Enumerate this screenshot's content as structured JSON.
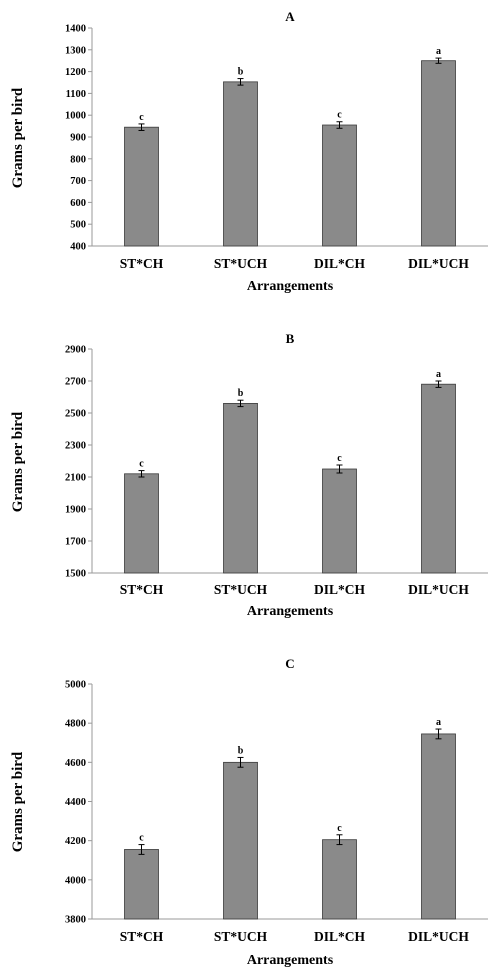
{
  "colors": {
    "bar_fill": "#8a8a8a",
    "bar_stroke": "#3a3a3a",
    "axis": "#9a9a9a",
    "background": "#ffffff"
  },
  "chart_data": [
    {
      "type": "bar",
      "title": "A",
      "xlabel": "Arrangements",
      "ylabel": "Grams per bird",
      "categories": [
        "ST*CH",
        "ST*UCH",
        "DIL*CH",
        "DIL*UCH"
      ],
      "values": [
        945,
        1153,
        955,
        1250
      ],
      "errors": [
        15,
        15,
        15,
        12
      ],
      "significance": [
        "c",
        "b",
        "c",
        "a"
      ],
      "ylim": [
        400,
        1400
      ],
      "yticks": [
        "400",
        "500",
        "600",
        "700",
        "800",
        "900",
        "1000",
        "1100",
        "1200",
        "1300",
        "1400"
      ],
      "grid": false,
      "legend": "none"
    },
    {
      "type": "bar",
      "title": "B",
      "xlabel": "Arrangements",
      "ylabel": "Grams per bird",
      "categories": [
        "ST*CH",
        "ST*UCH",
        "DIL*CH",
        "DIL*UCH"
      ],
      "values": [
        2120,
        2560,
        2150,
        2680
      ],
      "errors": [
        20,
        20,
        25,
        20
      ],
      "significance": [
        "c",
        "b",
        "c",
        "a"
      ],
      "ylim": [
        1500,
        2900
      ],
      "yticks": [
        "1500",
        "1700",
        "1900",
        "2100",
        "2300",
        "2500",
        "2700",
        "2900"
      ],
      "grid": false,
      "legend": "none"
    },
    {
      "type": "bar",
      "title": "C",
      "xlabel": "Arrangements",
      "ylabel": "Grams per bird",
      "categories": [
        "ST*CH",
        "ST*UCH",
        "DIL*CH",
        "DIL*UCH"
      ],
      "values": [
        4155,
        4600,
        4205,
        4745
      ],
      "errors": [
        25,
        25,
        25,
        25
      ],
      "significance": [
        "c",
        "b",
        "c",
        "a"
      ],
      "ylim": [
        3800,
        5000
      ],
      "yticks": [
        "3800",
        "4000",
        "4200",
        "4400",
        "4600",
        "4800",
        "5000"
      ],
      "grid": false,
      "legend": "none"
    }
  ]
}
